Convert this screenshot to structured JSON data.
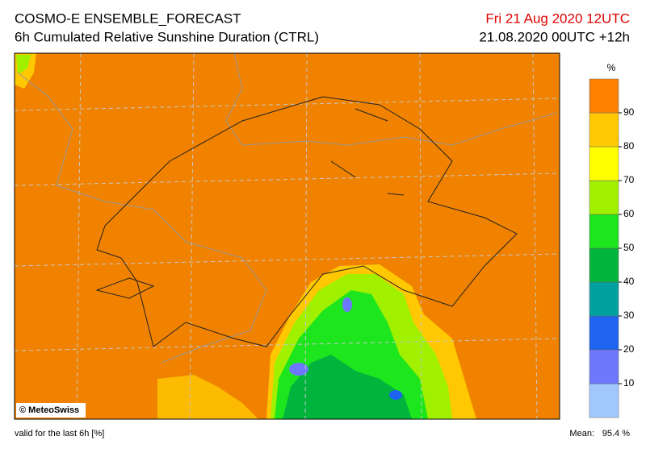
{
  "header": {
    "title": "COSMO-E ENSEMBLE_FORECAST",
    "subtitle": "6h Cumulated Relative Sunshine Duration (CTRL)",
    "valid_time": "Fri 21 Aug 2020 12UTC",
    "run": "21.08.2020 00UTC +12h"
  },
  "map": {
    "copyright": "© MeteoSwiss",
    "background_color": "#f08200"
  },
  "colorbar": {
    "unit": "%",
    "ticks": [
      10,
      20,
      30,
      40,
      50,
      60,
      70,
      80,
      90
    ],
    "colors": [
      "#a0c8ff",
      "#6e78ff",
      "#1e64f0",
      "#00a0a0",
      "#00b43c",
      "#1ee61e",
      "#a0f000",
      "#ffff00",
      "#ffc800",
      "#ff8200"
    ]
  },
  "footer": {
    "note": "valid for the last 6h [%]",
    "mean_label": "Mean:",
    "mean_value": "95.4 %"
  }
}
